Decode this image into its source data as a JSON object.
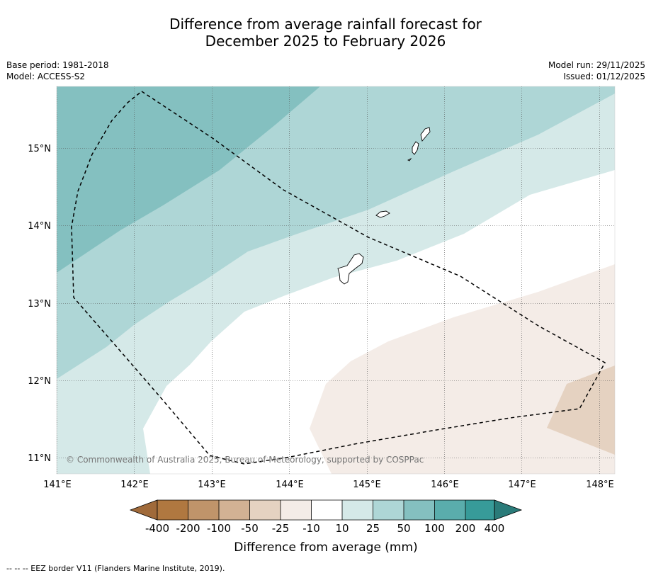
{
  "title": {
    "line1": "Difference from average rainfall forecast for",
    "line2": "December 2025 to February 2026"
  },
  "meta_left": {
    "base_period": "Base period: 1981-2018",
    "model": "Model: ACCESS-S2"
  },
  "meta_right": {
    "model_run": "Model run: 29/11/2025",
    "issued": "Issued: 01/12/2025"
  },
  "map": {
    "lon_range": [
      141,
      148.2
    ],
    "lat_range": [
      10.8,
      15.8
    ],
    "lon_ticks": [
      "141°E",
      "142°E",
      "143°E",
      "144°E",
      "145°E",
      "146°E",
      "147°E",
      "148°E"
    ],
    "lat_ticks": [
      "15°N",
      "14°N",
      "13°N",
      "12°N",
      "11°N"
    ],
    "copyright": "© Commonwealth of Australia 2025, Bureau of Meteorology, supported by COSPPac",
    "colors": {
      "band_100_200": "#84c0c0",
      "band_50_100": "#aed6d6",
      "band_10_50": "#d5e9e8",
      "band_neutral": "#ffffff",
      "band_minus10_25": "#f4ece7",
      "band_minus25_50": "#e5d2c1"
    }
  },
  "colorbar": {
    "labels": [
      "-400",
      "-200",
      "-100",
      "-50",
      "-25",
      "-10",
      "10",
      "25",
      "50",
      "100",
      "200",
      "400"
    ],
    "colors": [
      "#a06a3a",
      "#b07840",
      "#c0946a",
      "#d2b294",
      "#e5d2c1",
      "#f4ece7",
      "#ffffff",
      "#d5e9e8",
      "#aed6d6",
      "#84c0c0",
      "#5aadac",
      "#379b99",
      "#2a7b79"
    ],
    "title": "Difference from average (mm)"
  },
  "footnote": "--  --  -- EEZ border V11 (Flanders Marine Institute, 2019)."
}
